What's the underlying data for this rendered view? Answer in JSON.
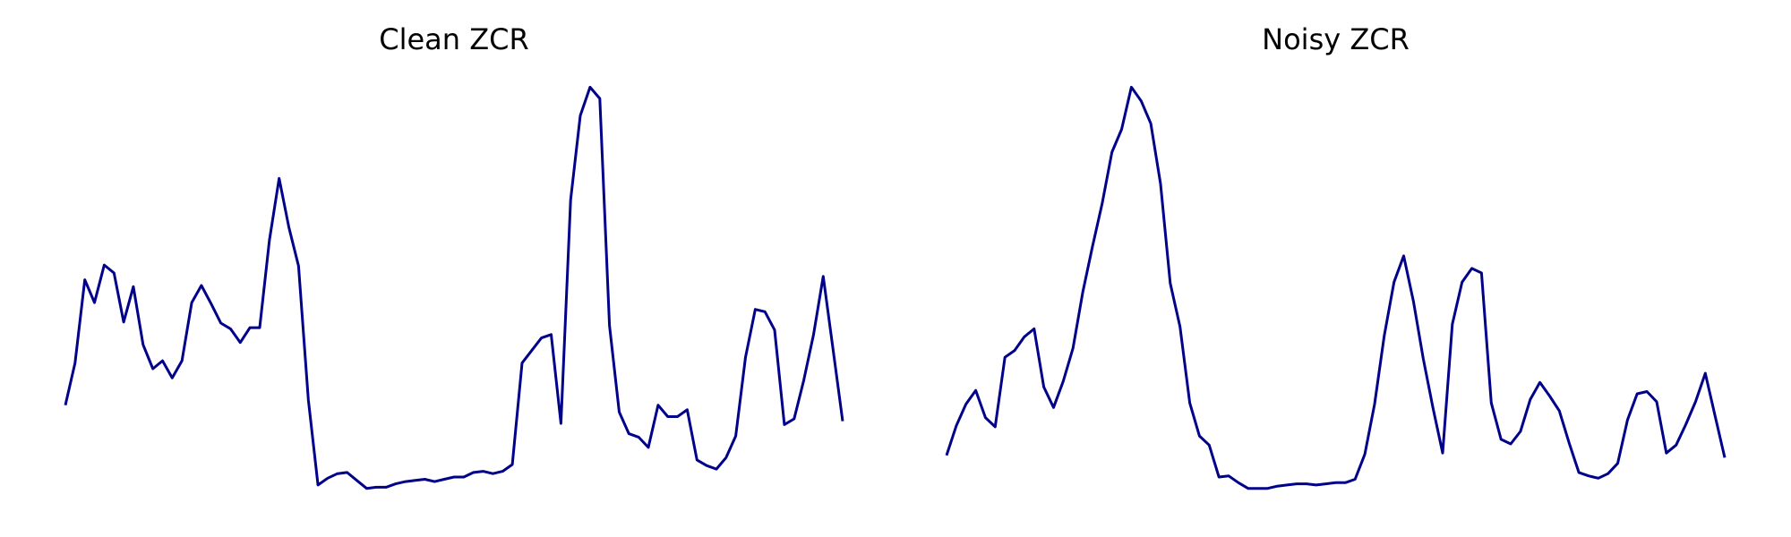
{
  "chart_data": [
    {
      "type": "line",
      "title": "Clean ZCR",
      "color": "#00008b",
      "ylim": [
        0,
        0.38
      ],
      "values": [
        0.085,
        0.122,
        0.195,
        0.175,
        0.208,
        0.201,
        0.158,
        0.189,
        0.138,
        0.117,
        0.124,
        0.109,
        0.124,
        0.175,
        0.19,
        0.174,
        0.157,
        0.152,
        0.14,
        0.153,
        0.153,
        0.23,
        0.284,
        0.241,
        0.207,
        0.09,
        0.015,
        0.021,
        0.025,
        0.026,
        0.019,
        0.012,
        0.013,
        0.013,
        0.016,
        0.018,
        0.019,
        0.02,
        0.018,
        0.02,
        0.022,
        0.022,
        0.026,
        0.027,
        0.025,
        0.027,
        0.033,
        0.122,
        0.133,
        0.144,
        0.147,
        0.069,
        0.265,
        0.339,
        0.364,
        0.354,
        0.155,
        0.079,
        0.06,
        0.057,
        0.048,
        0.085,
        0.075,
        0.075,
        0.081,
        0.037,
        0.032,
        0.029,
        0.039,
        0.058,
        0.127,
        0.169,
        0.167,
        0.151,
        0.068,
        0.073,
        0.107,
        0.147,
        0.198,
        0.135,
        0.071
      ]
    },
    {
      "type": "line",
      "title": "Noisy ZCR",
      "color": "#00008b",
      "ylim": [
        0,
        0.38
      ],
      "values": [
        0.041,
        0.067,
        0.086,
        0.098,
        0.074,
        0.066,
        0.127,
        0.133,
        0.145,
        0.152,
        0.101,
        0.083,
        0.106,
        0.135,
        0.184,
        0.224,
        0.262,
        0.307,
        0.327,
        0.364,
        0.352,
        0.332,
        0.279,
        0.192,
        0.154,
        0.087,
        0.058,
        0.05,
        0.022,
        0.023,
        0.017,
        0.012,
        0.012,
        0.012,
        0.014,
        0.015,
        0.016,
        0.016,
        0.015,
        0.016,
        0.017,
        0.017,
        0.02,
        0.042,
        0.086,
        0.146,
        0.193,
        0.216,
        0.176,
        0.126,
        0.083,
        0.043,
        0.156,
        0.193,
        0.205,
        0.201,
        0.087,
        0.055,
        0.051,
        0.062,
        0.09,
        0.105,
        0.093,
        0.08,
        0.052,
        0.026,
        0.023,
        0.021,
        0.025,
        0.034,
        0.072,
        0.095,
        0.097,
        0.088,
        0.043,
        0.05,
        0.068,
        0.088,
        0.113,
        0.076,
        0.039
      ]
    }
  ]
}
